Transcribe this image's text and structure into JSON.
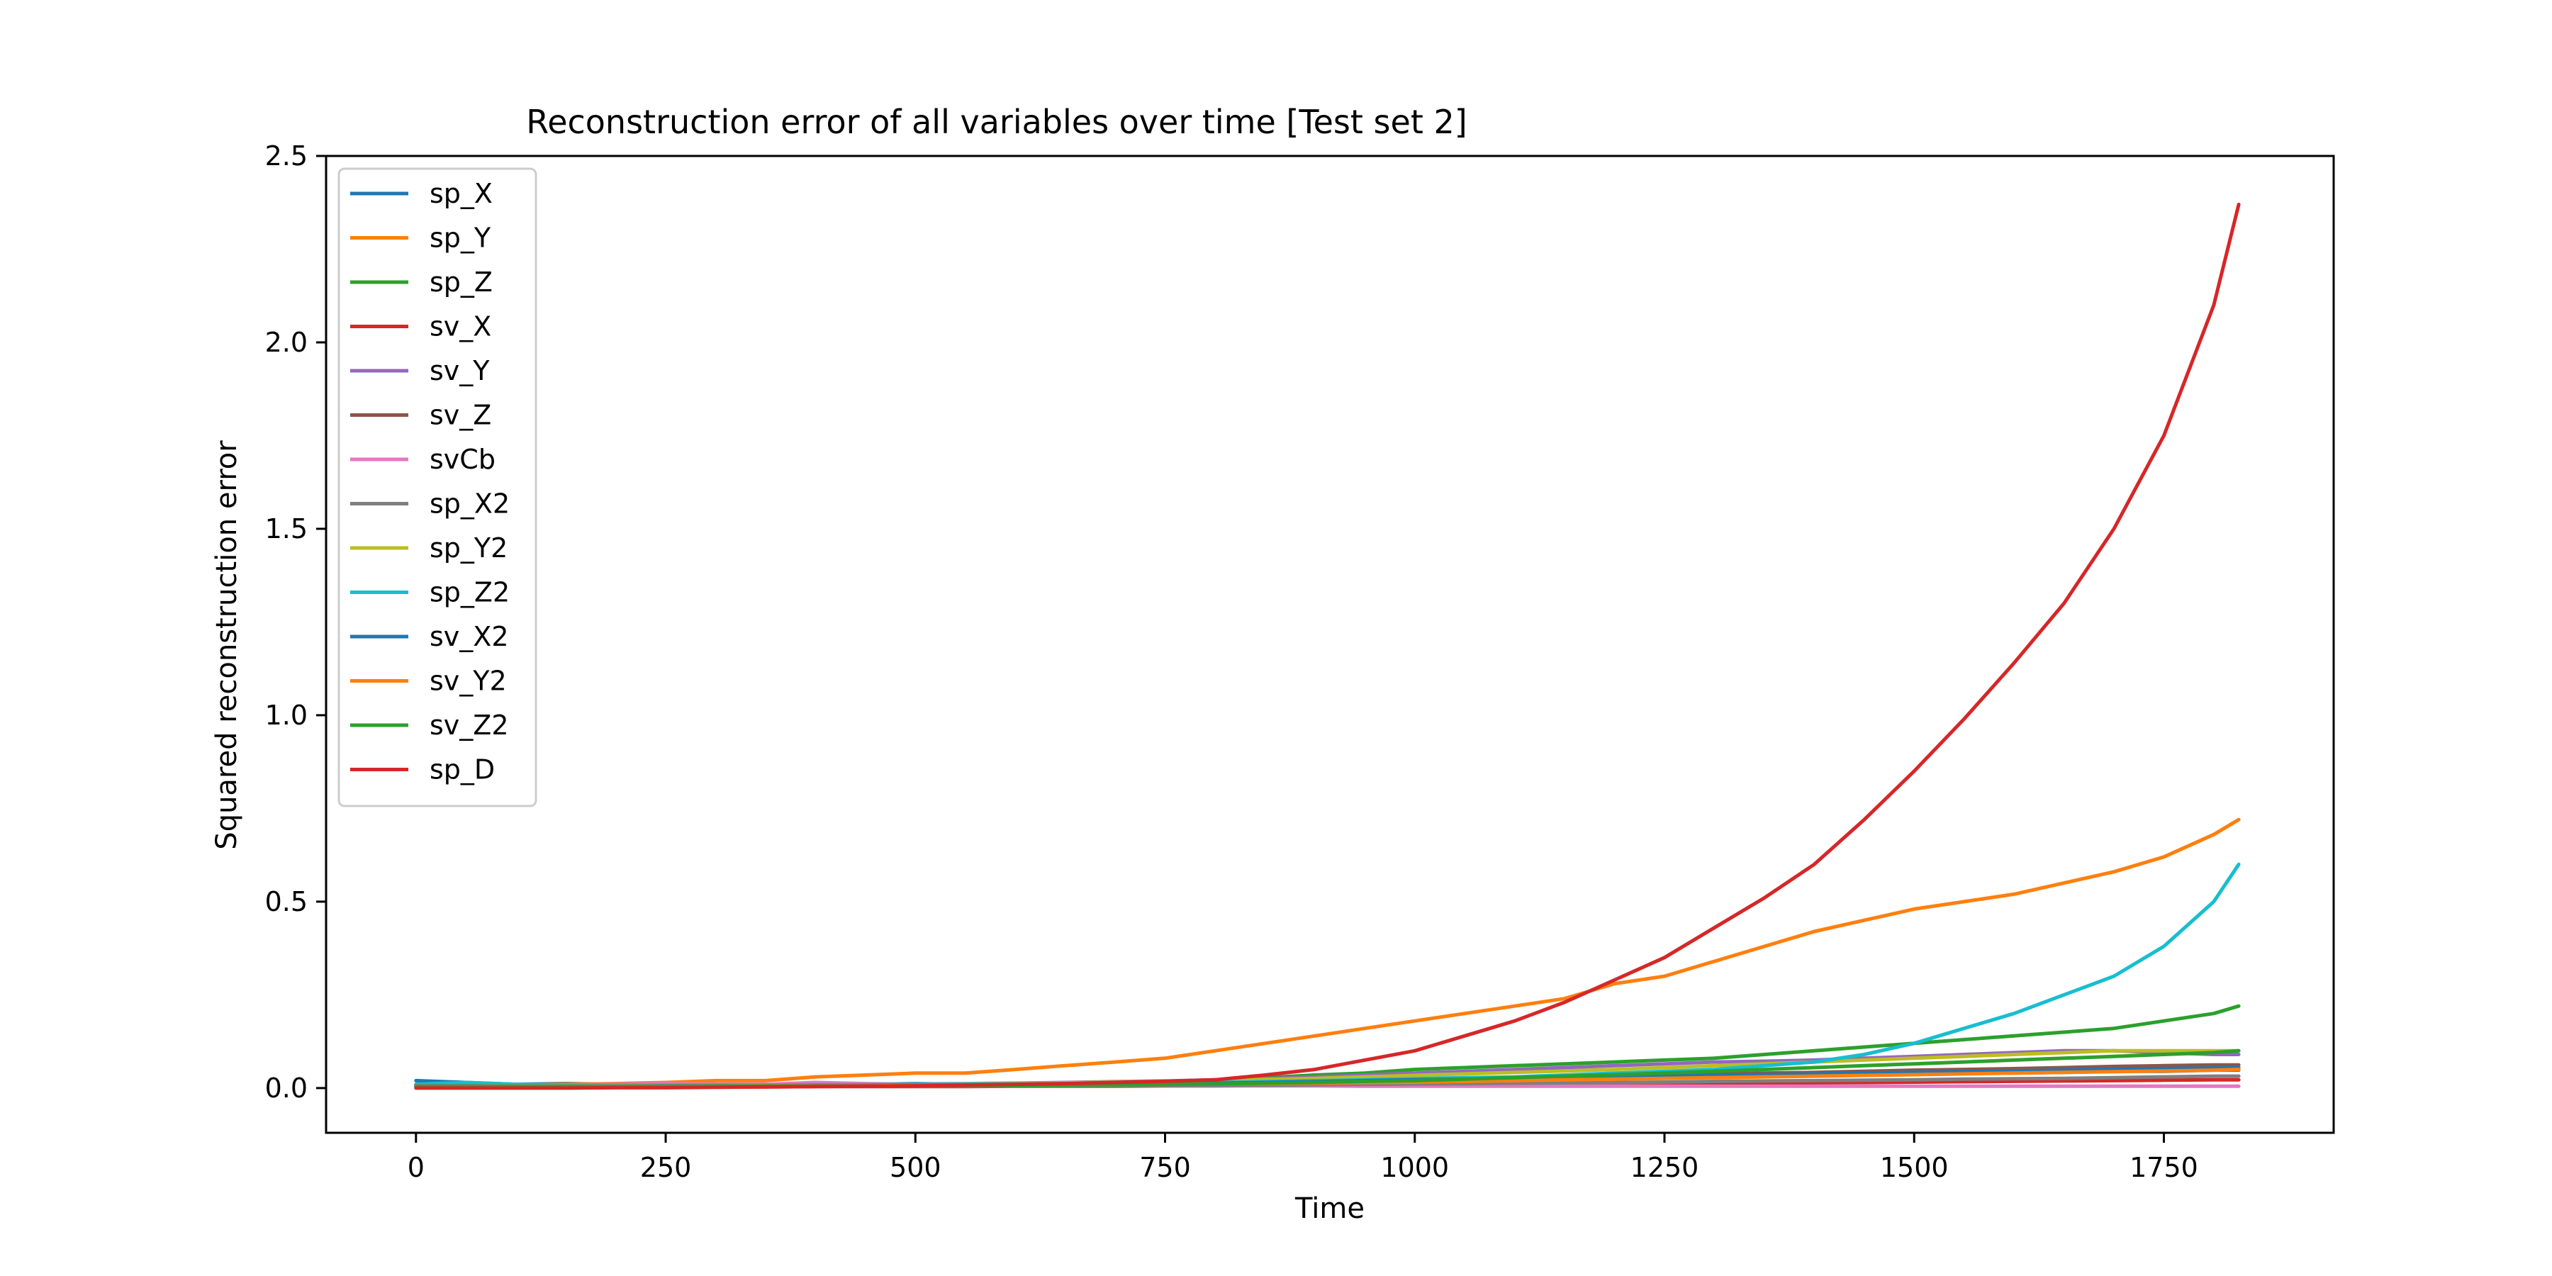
{
  "chart_data": {
    "type": "line",
    "title": "Reconstruction error of all variables over time [Test set 2]",
    "xlabel": "Time",
    "ylabel": "Squared reconstruction error",
    "xlim": [
      -90,
      1920
    ],
    "ylim": [
      -0.12,
      2.5
    ],
    "x_ticks": [
      0,
      250,
      500,
      750,
      1000,
      1250,
      1500,
      1750
    ],
    "y_ticks": [
      0.0,
      0.5,
      1.0,
      1.5,
      2.0,
      2.5
    ],
    "x_tick_labels": [
      "0",
      "250",
      "500",
      "750",
      "1000",
      "1250",
      "1500",
      "1750"
    ],
    "y_tick_labels": [
      "0.0",
      "0.5",
      "1.0",
      "1.5",
      "2.0",
      "2.5"
    ],
    "grid": false,
    "legend_position": "top-left",
    "x": [
      0,
      50,
      100,
      150,
      200,
      250,
      300,
      350,
      400,
      450,
      500,
      550,
      600,
      650,
      700,
      750,
      800,
      850,
      900,
      950,
      1000,
      1050,
      1100,
      1150,
      1200,
      1250,
      1300,
      1350,
      1400,
      1450,
      1500,
      1550,
      1600,
      1650,
      1700,
      1750,
      1800,
      1825
    ],
    "series": [
      {
        "name": "sp_X",
        "color": "#1f77b4",
        "values": [
          0.02,
          0.015,
          0.01,
          0.012,
          0.01,
          0.012,
          0.01,
          0.01,
          0.012,
          0.01,
          0.012,
          0.01,
          0.012,
          0.01,
          0.012,
          0.013,
          0.015,
          0.015,
          0.018,
          0.02,
          0.022,
          0.022,
          0.025,
          0.025,
          0.028,
          0.03,
          0.03,
          0.032,
          0.035,
          0.035,
          0.038,
          0.04,
          0.04,
          0.042,
          0.045,
          0.045,
          0.048,
          0.048
        ]
      },
      {
        "name": "sp_Y",
        "color": "#ff7f0e",
        "values": [
          0.005,
          0.01,
          0.008,
          0.01,
          0.012,
          0.015,
          0.02,
          0.02,
          0.03,
          0.035,
          0.04,
          0.04,
          0.05,
          0.06,
          0.07,
          0.08,
          0.1,
          0.12,
          0.14,
          0.16,
          0.18,
          0.2,
          0.22,
          0.24,
          0.28,
          0.3,
          0.34,
          0.38,
          0.42,
          0.45,
          0.48,
          0.5,
          0.52,
          0.55,
          0.58,
          0.62,
          0.68,
          0.72
        ]
      },
      {
        "name": "sp_Z",
        "color": "#2ca02c",
        "values": [
          0.005,
          0.005,
          0.004,
          0.004,
          0.005,
          0.005,
          0.005,
          0.006,
          0.006,
          0.007,
          0.008,
          0.008,
          0.01,
          0.012,
          0.015,
          0.018,
          0.022,
          0.028,
          0.035,
          0.04,
          0.05,
          0.055,
          0.06,
          0.065,
          0.07,
          0.075,
          0.08,
          0.09,
          0.1,
          0.11,
          0.12,
          0.13,
          0.14,
          0.15,
          0.16,
          0.18,
          0.2,
          0.22
        ]
      },
      {
        "name": "sv_X",
        "color": "#d62728",
        "values": [
          0.003,
          0.003,
          0.003,
          0.003,
          0.003,
          0.003,
          0.003,
          0.003,
          0.004,
          0.004,
          0.004,
          0.004,
          0.005,
          0.005,
          0.005,
          0.006,
          0.006,
          0.007,
          0.007,
          0.008,
          0.008,
          0.009,
          0.01,
          0.01,
          0.011,
          0.012,
          0.012,
          0.013,
          0.014,
          0.015,
          0.016,
          0.017,
          0.018,
          0.019,
          0.02,
          0.021,
          0.022,
          0.022
        ]
      },
      {
        "name": "sv_Y",
        "color": "#9467bd",
        "values": [
          0.008,
          0.008,
          0.006,
          0.006,
          0.006,
          0.007,
          0.007,
          0.008,
          0.009,
          0.01,
          0.011,
          0.012,
          0.013,
          0.015,
          0.017,
          0.019,
          0.022,
          0.025,
          0.03,
          0.035,
          0.04,
          0.045,
          0.05,
          0.055,
          0.06,
          0.065,
          0.07,
          0.072,
          0.075,
          0.08,
          0.085,
          0.09,
          0.095,
          0.1,
          0.1,
          0.095,
          0.09,
          0.09
        ]
      },
      {
        "name": "sv_Z",
        "color": "#8c564b",
        "values": [
          0.006,
          0.006,
          0.005,
          0.005,
          0.005,
          0.006,
          0.006,
          0.006,
          0.007,
          0.007,
          0.008,
          0.008,
          0.009,
          0.01,
          0.011,
          0.012,
          0.013,
          0.015,
          0.017,
          0.02,
          0.022,
          0.025,
          0.028,
          0.03,
          0.032,
          0.035,
          0.037,
          0.04,
          0.042,
          0.045,
          0.048,
          0.05,
          0.052,
          0.055,
          0.058,
          0.06,
          0.062,
          0.062
        ]
      },
      {
        "name": "svCb",
        "color": "#e377c2",
        "values": [
          0.01,
          0.012,
          0.008,
          0.008,
          0.01,
          0.012,
          0.01,
          0.01,
          0.015,
          0.012,
          0.01,
          0.01,
          0.008,
          0.008,
          0.007,
          0.007,
          0.006,
          0.006,
          0.006,
          0.005,
          0.005,
          0.005,
          0.005,
          0.005,
          0.005,
          0.005,
          0.005,
          0.005,
          0.005,
          0.005,
          0.005,
          0.005,
          0.005,
          0.005,
          0.005,
          0.005,
          0.005,
          0.005
        ]
      },
      {
        "name": "sp_X2",
        "color": "#7f7f7f",
        "values": [
          0.004,
          0.004,
          0.004,
          0.004,
          0.004,
          0.004,
          0.004,
          0.004,
          0.005,
          0.005,
          0.005,
          0.005,
          0.006,
          0.006,
          0.006,
          0.007,
          0.007,
          0.008,
          0.009,
          0.01,
          0.011,
          0.012,
          0.013,
          0.014,
          0.015,
          0.016,
          0.018,
          0.019,
          0.02,
          0.021,
          0.022,
          0.024,
          0.025,
          0.026,
          0.028,
          0.03,
          0.032,
          0.032
        ]
      },
      {
        "name": "sp_Y2",
        "color": "#bcbd22",
        "values": [
          0.005,
          0.006,
          0.005,
          0.005,
          0.005,
          0.006,
          0.006,
          0.007,
          0.008,
          0.009,
          0.01,
          0.011,
          0.012,
          0.014,
          0.016,
          0.018,
          0.02,
          0.023,
          0.026,
          0.03,
          0.034,
          0.038,
          0.042,
          0.046,
          0.05,
          0.055,
          0.06,
          0.065,
          0.07,
          0.075,
          0.08,
          0.085,
          0.09,
          0.095,
          0.1,
          0.1,
          0.1,
          0.1
        ]
      },
      {
        "name": "sp_Z2",
        "color": "#17becf",
        "values": [
          0.01,
          0.015,
          0.01,
          0.008,
          0.008,
          0.008,
          0.008,
          0.008,
          0.009,
          0.009,
          0.01,
          0.01,
          0.011,
          0.012,
          0.013,
          0.014,
          0.015,
          0.017,
          0.02,
          0.022,
          0.025,
          0.028,
          0.03,
          0.035,
          0.04,
          0.045,
          0.05,
          0.06,
          0.07,
          0.09,
          0.12,
          0.16,
          0.2,
          0.25,
          0.3,
          0.38,
          0.5,
          0.6
        ]
      },
      {
        "name": "sv_X2",
        "color": "#1f77b4",
        "values": [
          0.006,
          0.006,
          0.005,
          0.005,
          0.005,
          0.006,
          0.006,
          0.006,
          0.007,
          0.007,
          0.008,
          0.008,
          0.009,
          0.01,
          0.011,
          0.012,
          0.013,
          0.015,
          0.017,
          0.02,
          0.022,
          0.024,
          0.026,
          0.028,
          0.03,
          0.032,
          0.034,
          0.036,
          0.038,
          0.04,
          0.042,
          0.044,
          0.046,
          0.048,
          0.05,
          0.052,
          0.054,
          0.055
        ]
      },
      {
        "name": "sv_Y2",
        "color": "#ff7f0e",
        "values": [
          0.005,
          0.005,
          0.005,
          0.005,
          0.005,
          0.005,
          0.005,
          0.006,
          0.006,
          0.006,
          0.007,
          0.007,
          0.008,
          0.008,
          0.009,
          0.01,
          0.011,
          0.012,
          0.013,
          0.015,
          0.016,
          0.018,
          0.02,
          0.022,
          0.024,
          0.026,
          0.028,
          0.03,
          0.032,
          0.034,
          0.036,
          0.038,
          0.04,
          0.042,
          0.044,
          0.046,
          0.048,
          0.05
        ]
      },
      {
        "name": "sv_Z2",
        "color": "#2ca02c",
        "values": [
          0.004,
          0.004,
          0.004,
          0.004,
          0.004,
          0.004,
          0.004,
          0.005,
          0.005,
          0.005,
          0.006,
          0.006,
          0.007,
          0.008,
          0.009,
          0.01,
          0.011,
          0.013,
          0.015,
          0.018,
          0.02,
          0.024,
          0.028,
          0.032,
          0.036,
          0.04,
          0.045,
          0.05,
          0.055,
          0.06,
          0.065,
          0.07,
          0.075,
          0.08,
          0.085,
          0.09,
          0.095,
          0.1
        ]
      },
      {
        "name": "sp_D",
        "color": "#d62728",
        "values": [
          0.0,
          0.0,
          0.0,
          0.0,
          0.001,
          0.001,
          0.002,
          0.003,
          0.004,
          0.005,
          0.006,
          0.008,
          0.01,
          0.012,
          0.015,
          0.018,
          0.022,
          0.035,
          0.05,
          0.075,
          0.1,
          0.14,
          0.18,
          0.23,
          0.29,
          0.35,
          0.43,
          0.51,
          0.6,
          0.72,
          0.85,
          0.99,
          1.14,
          1.3,
          1.5,
          1.75,
          2.1,
          2.37
        ]
      }
    ]
  }
}
